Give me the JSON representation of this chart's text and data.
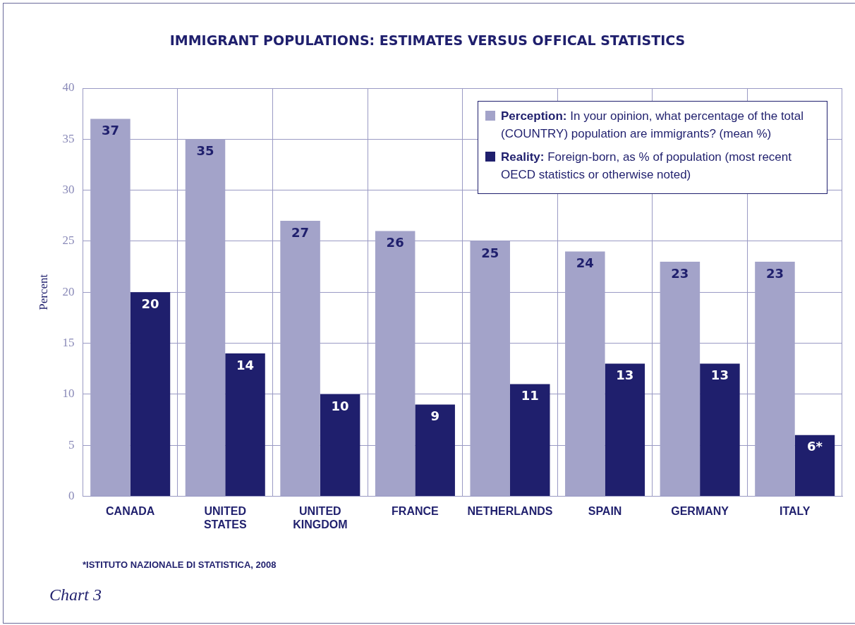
{
  "chart_data": {
    "type": "bar",
    "title": "IMMIGRANT POPULATIONS: ESTIMATES VERSUS OFFICAL STATISTICS",
    "ylabel": "Percent",
    "categories": [
      "CANADA",
      "UNITED STATES",
      "UNITED KINGDOM",
      "FRANCE",
      "NETHERLANDS",
      "SPAIN",
      "GERMANY",
      "ITALY"
    ],
    "series": [
      {
        "name": "Perception: In your opinion, what percentage of the total (COUNTRY) population are immigrants? (mean %)",
        "color": "#a3a3c9",
        "values": [
          37,
          35,
          27,
          26,
          25,
          24,
          23,
          23
        ],
        "value_labels": [
          "37",
          "35",
          "27",
          "26",
          "25",
          "24",
          "23",
          "23"
        ]
      },
      {
        "name": "Reality: Foreign-born, as % of population (most recent OECD statistics or otherwise noted)",
        "color": "#1f1f6d",
        "values": [
          20,
          14,
          10,
          9,
          11,
          13,
          13,
          6
        ],
        "value_labels": [
          "20",
          "14",
          "10",
          "9",
          "11",
          "13",
          "13",
          "6*"
        ]
      }
    ],
    "ylim": [
      0,
      40
    ],
    "yticks": [
      0,
      5,
      10,
      15,
      20,
      25,
      30,
      35,
      40
    ],
    "grid": true,
    "legend": "top right",
    "annotations": [
      "*ISTITUTO NAZIONALE DI STATISTICA, 2008",
      "Chart 3"
    ]
  }
}
